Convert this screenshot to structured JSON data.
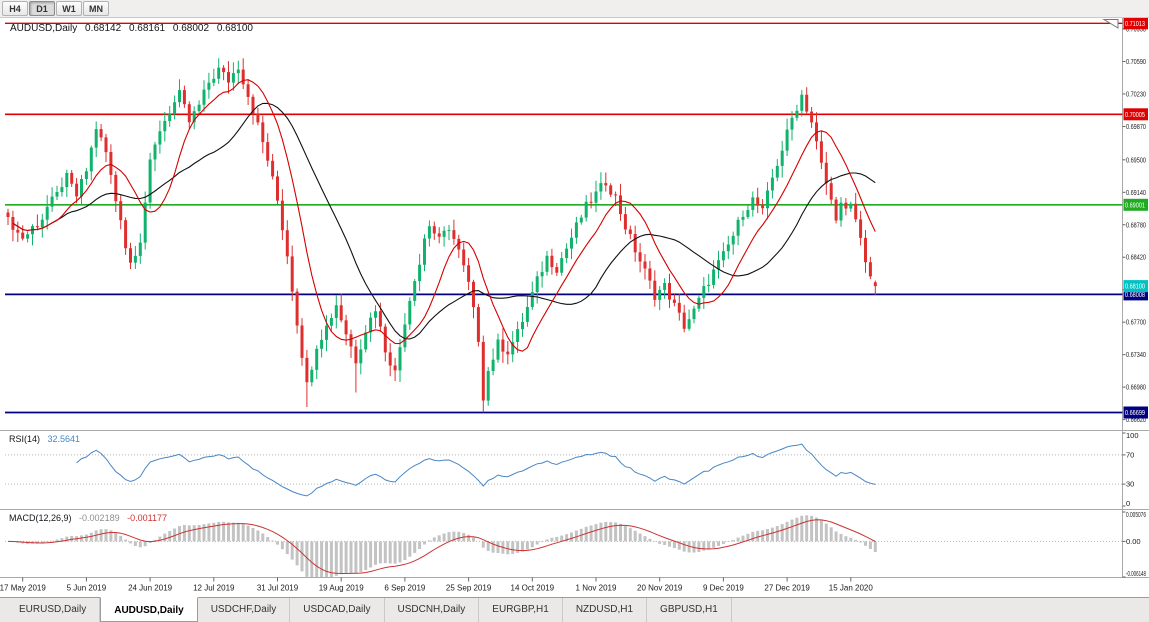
{
  "toolbar": {
    "timeframes": [
      {
        "label": "H4",
        "active": false
      },
      {
        "label": "D1",
        "active": true
      },
      {
        "label": "W1",
        "active": false
      },
      {
        "label": "MN",
        "active": false
      }
    ]
  },
  "chart_header": {
    "symbol": "AUDUSD,Daily",
    "open": "0.68142",
    "high": "0.68161",
    "low": "0.68002",
    "close": "0.68100"
  },
  "rsi_header": {
    "label": "RSI(14)",
    "value": "32.5641"
  },
  "macd_header": {
    "label": "MACD(12,26,9)",
    "value_main": "-0.002189",
    "value_signal": "-0.001177"
  },
  "tabs": [
    {
      "label": "EURUSD,Daily",
      "active": false
    },
    {
      "label": "AUDUSD,Daily",
      "active": true
    },
    {
      "label": "USDCHF,Daily",
      "active": false
    },
    {
      "label": "USDCAD,Daily",
      "active": false
    },
    {
      "label": "USDCNH,Daily",
      "active": false
    },
    {
      "label": "EURGBP,H1",
      "active": false
    },
    {
      "label": "NZDUSD,H1",
      "active": false
    },
    {
      "label": "GBPUSD,H1",
      "active": false
    }
  ],
  "chart_data": {
    "type": "candlestick",
    "symbol": "AUDUSD",
    "timeframe": "Daily",
    "last_ohlc": {
      "open": 0.68142,
      "high": 0.68161,
      "low": 0.68002,
      "close": 0.681
    },
    "current_price": 0.681,
    "price_axis": {
      "ticks": [
        0.7095,
        0.7059,
        0.7023,
        0.6987,
        0.695,
        0.6914,
        0.6878,
        0.6842,
        0.6806,
        0.677,
        0.6734,
        0.6698,
        0.6662
      ]
    },
    "levels": [
      {
        "price": 0.71013,
        "color": "#e00000",
        "width": 1.4
      },
      {
        "price": 0.70005,
        "color": "#e00000",
        "width": 1.6
      },
      {
        "price": 0.69001,
        "color": "#22aa22",
        "width": 1.6
      },
      {
        "price": 0.68008,
        "color": "#000080",
        "width": 1.8
      },
      {
        "price": 0.66699,
        "color": "#000080",
        "width": 1.8
      }
    ],
    "date_ticks": [
      {
        "index": 3,
        "label": "17 May 2019"
      },
      {
        "index": 16,
        "label": "5 Jun 2019"
      },
      {
        "index": 29,
        "label": "24 Jun 2019"
      },
      {
        "index": 42,
        "label": "12 Jul 2019"
      },
      {
        "index": 55,
        "label": "31 Jul 2019"
      },
      {
        "index": 68,
        "label": "19 Aug 2019"
      },
      {
        "index": 81,
        "label": "6 Sep 2019"
      },
      {
        "index": 94,
        "label": "25 Sep 2019"
      },
      {
        "index": 107,
        "label": "14 Oct 2019"
      },
      {
        "index": 120,
        "label": "1 Nov 2019"
      },
      {
        "index": 133,
        "label": "20 Nov 2019"
      },
      {
        "index": 146,
        "label": "9 Dec 2019"
      },
      {
        "index": 159,
        "label": "27 Dec 2019"
      },
      {
        "index": 172,
        "label": "15 Jan 2020"
      }
    ],
    "candle_count": 178,
    "price_anchors": [
      [
        0,
        0.6882
      ],
      [
        3,
        0.6864
      ],
      [
        6,
        0.6879
      ],
      [
        9,
        0.6904
      ],
      [
        12,
        0.693
      ],
      [
        14,
        0.691
      ],
      [
        16,
        0.6938
      ],
      [
        18,
        0.6986
      ],
      [
        20,
        0.6958
      ],
      [
        22,
        0.6905
      ],
      [
        25,
        0.6836
      ],
      [
        27,
        0.6862
      ],
      [
        29,
        0.6945
      ],
      [
        31,
        0.6984
      ],
      [
        33,
        0.7004
      ],
      [
        35,
        0.7022
      ],
      [
        37,
        0.6992
      ],
      [
        39,
        0.701
      ],
      [
        41,
        0.7036
      ],
      [
        43,
        0.705
      ],
      [
        45,
        0.7038
      ],
      [
        47,
        0.7054
      ],
      [
        49,
        0.7022
      ],
      [
        51,
        0.6988
      ],
      [
        53,
        0.695
      ],
      [
        55,
        0.6905
      ],
      [
        57,
        0.6845
      ],
      [
        59,
        0.677
      ],
      [
        61,
        0.67
      ],
      [
        63,
        0.6745
      ],
      [
        65,
        0.6765
      ],
      [
        67,
        0.679
      ],
      [
        69,
        0.6758
      ],
      [
        71,
        0.6728
      ],
      [
        73,
        0.6762
      ],
      [
        75,
        0.6786
      ],
      [
        77,
        0.674
      ],
      [
        79,
        0.6714
      ],
      [
        81,
        0.6772
      ],
      [
        83,
        0.682
      ],
      [
        86,
        0.6878
      ],
      [
        88,
        0.686
      ],
      [
        90,
        0.6876
      ],
      [
        92,
        0.6848
      ],
      [
        94,
        0.6812
      ],
      [
        96,
        0.6752
      ],
      [
        97,
        0.6688
      ],
      [
        98,
        0.6716
      ],
      [
        100,
        0.6746
      ],
      [
        102,
        0.6738
      ],
      [
        104,
        0.6758
      ],
      [
        106,
        0.6786
      ],
      [
        108,
        0.6816
      ],
      [
        110,
        0.6842
      ],
      [
        112,
        0.683
      ],
      [
        114,
        0.6852
      ],
      [
        116,
        0.6876
      ],
      [
        118,
        0.6898
      ],
      [
        120,
        0.6912
      ],
      [
        122,
        0.6926
      ],
      [
        124,
        0.6908
      ],
      [
        126,
        0.6876
      ],
      [
        128,
        0.685
      ],
      [
        130,
        0.6826
      ],
      [
        132,
        0.68
      ],
      [
        134,
        0.681
      ],
      [
        136,
        0.6788
      ],
      [
        138,
        0.6766
      ],
      [
        140,
        0.6782
      ],
      [
        142,
        0.6806
      ],
      [
        144,
        0.6826
      ],
      [
        146,
        0.6844
      ],
      [
        148,
        0.6866
      ],
      [
        150,
        0.6892
      ],
      [
        152,
        0.6906
      ],
      [
        154,
        0.6892
      ],
      [
        156,
        0.693
      ],
      [
        158,
        0.6962
      ],
      [
        160,
        0.6996
      ],
      [
        162,
        0.7022
      ],
      [
        164,
        0.6992
      ],
      [
        166,
        0.6944
      ],
      [
        168,
        0.6904
      ],
      [
        169,
        0.6888
      ],
      [
        170,
        0.69
      ],
      [
        171,
        0.6892
      ],
      [
        172,
        0.6898
      ],
      [
        173,
        0.6884
      ],
      [
        174,
        0.6862
      ],
      [
        175,
        0.684
      ],
      [
        176,
        0.6822
      ],
      [
        177,
        0.681
      ]
    ],
    "wick_overrides": [
      [
        61,
        0.6676
      ],
      [
        71,
        0.6692
      ],
      [
        97,
        0.667
      ]
    ],
    "indicators": {
      "ma_fast": {
        "period": 10,
        "color": "#d40000"
      },
      "ma_slow": {
        "period": 24,
        "color": "#111111"
      },
      "rsi": {
        "period": 14,
        "color": "#4a86c4",
        "levels": [
          30,
          70
        ],
        "current": 32.5641,
        "axis_labels": [
          {
            "v": 100,
            "label": "100"
          },
          {
            "v": 70,
            "label": "70"
          },
          {
            "v": 30,
            "label": "30"
          },
          {
            "v": 0,
            "label": "0"
          }
        ]
      },
      "macd": {
        "fast": 12,
        "slow": 26,
        "signal": 9,
        "current": -0.002189,
        "signal_current": -0.001177,
        "hist_color": "#c3c3c3",
        "signal_color": "#cc3333",
        "range": [
          -0.006148,
          0.005076
        ],
        "axis_labels": [
          {
            "v": 0.005076,
            "label": "0.005076"
          },
          {
            "v": 0,
            "label": "0.00"
          },
          {
            "v": -0.006148,
            "label": "-0.006148"
          }
        ]
      }
    },
    "colors": {
      "bull": "#10b26c",
      "bear": "#df2e2e",
      "current_label": "#00c2c2",
      "axis_text": "#1a1a1a"
    }
  }
}
